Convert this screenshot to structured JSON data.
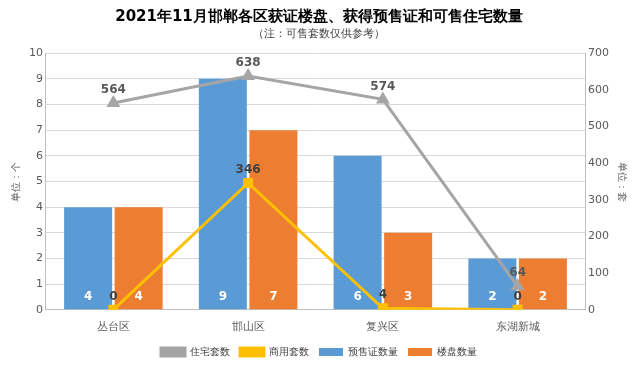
{
  "chart_data": {
    "type": "bar",
    "title": "2021年11月邯郸各区获证楼盘、获得预售证和可售住宅数量",
    "subtitle": "（注：可售套数仅供参考）",
    "categories": [
      "丛台区",
      "邯山区",
      "复兴区",
      "东湖新城"
    ],
    "series": [
      {
        "name": "预售证数量",
        "color": "#5b9bd5",
        "values": [
          4,
          9,
          6,
          2
        ]
      },
      {
        "name": "楼盘数量",
        "color": "#ed7d31",
        "values": [
          4,
          7,
          3,
          2
        ]
      },
      {
        "name": "住宅套数",
        "type": "line",
        "color": "#a5a5a5",
        "marker": "triangle",
        "axis": "y2",
        "values": [
          564,
          638,
          574,
          64
        ]
      },
      {
        "name": "商用套数",
        "type": "line",
        "color": "#ffc000",
        "marker": "square",
        "axis": "y2",
        "values": [
          0,
          346,
          4,
          0
        ]
      }
    ],
    "y_label": "单位：个",
    "y2_label": "单位：套",
    "ylim": [
      0,
      10
    ],
    "yticks": [
      0,
      1,
      2,
      3,
      4,
      5,
      6,
      7,
      8,
      9,
      10
    ],
    "y2lim": [
      0,
      700
    ],
    "y2ticks": [
      0,
      100,
      200,
      300,
      400,
      500,
      600,
      700
    ],
    "grid": true,
    "legend": "bottom",
    "data_labels": true
  }
}
